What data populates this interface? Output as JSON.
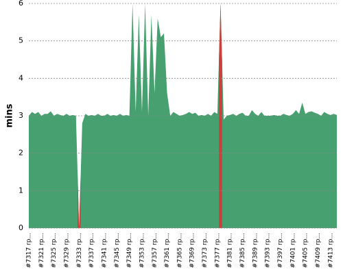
{
  "chart_data": {
    "type": "area",
    "y_label": "mins",
    "categories": [
      "#7317 rp...",
      null,
      null,
      null,
      "#7321 rp...",
      null,
      null,
      null,
      "#7325 rp...",
      null,
      null,
      null,
      "#7329 rp...",
      null,
      null,
      null,
      "#7333 rp...",
      null,
      null,
      null,
      "#7337 rp...",
      null,
      null,
      null,
      "#7341 rp...",
      null,
      null,
      null,
      "#7345 rp...",
      null,
      null,
      null,
      "#7349 rp...",
      null,
      null,
      null,
      "#7353 rp...",
      null,
      null,
      null,
      "#7357 rp...",
      null,
      null,
      null,
      "#7361 rp...",
      null,
      null,
      null,
      "#7365 rp...",
      null,
      null,
      null,
      "#7369 rp...",
      null,
      null,
      null,
      "#7373 rp...",
      null,
      null,
      null,
      "#7377 rp...",
      null,
      null,
      null,
      "#7381 rp...",
      null,
      null,
      null,
      "#7385 rp...",
      null,
      null,
      null,
      "#7389 rp...",
      null,
      null,
      null,
      "#7393 rp...",
      null,
      null,
      null,
      "#7397 rp...",
      null,
      null,
      null,
      "#7401 rp...",
      null,
      null,
      null,
      "#7405 rp...",
      null,
      null,
      null,
      "#7409 rp...",
      null,
      null,
      null,
      "#7413 rp...",
      null,
      null
    ],
    "values": [
      3.0,
      3.1,
      3.05,
      3.1,
      3.0,
      3.05,
      3.05,
      3.12,
      3.0,
      3.05,
      3.02,
      3.0,
      3.05,
      3.0,
      3.02,
      3.0,
      0,
      2.8,
      3.05,
      3.0,
      3.02,
      3.0,
      3.05,
      3.0,
      3.0,
      3.05,
      3.0,
      3.02,
      3.0,
      3.05,
      3.0,
      3.02,
      3.0,
      6.0,
      3.1,
      5.7,
      3.1,
      6.0,
      3.0,
      5.7,
      3.6,
      5.6,
      5.1,
      5.2,
      3.6,
      3.0,
      3.1,
      3.05,
      3.0,
      3.02,
      3.05,
      3.1,
      3.05,
      3.08,
      3.0,
      3.02,
      3.0,
      3.05,
      3.0,
      3.1,
      3.05,
      6.0,
      2.9,
      3.0,
      3.02,
      3.05,
      3.0,
      3.05,
      3.08,
      3.0,
      3.0,
      3.15,
      3.05,
      3.0,
      3.1,
      3.0,
      3.0,
      3.0,
      3.02,
      3.0,
      3.0,
      3.05,
      3.02,
      3.0,
      3.05,
      3.15,
      3.05,
      3.35,
      3.05,
      3.1,
      3.12,
      3.08,
      3.05,
      3.0,
      3.1,
      3.05,
      3.02,
      3.05,
      3.02
    ],
    "color": "#46a06f",
    "highlight": [
      {
        "index": 16,
        "color": "#c8413a"
      },
      {
        "index": 61,
        "color": "#c8413a"
      }
    ],
    "ylim": [
      0,
      6
    ],
    "yticks": [
      0,
      1,
      2,
      3,
      4,
      5,
      6
    ],
    "grid": true
  }
}
